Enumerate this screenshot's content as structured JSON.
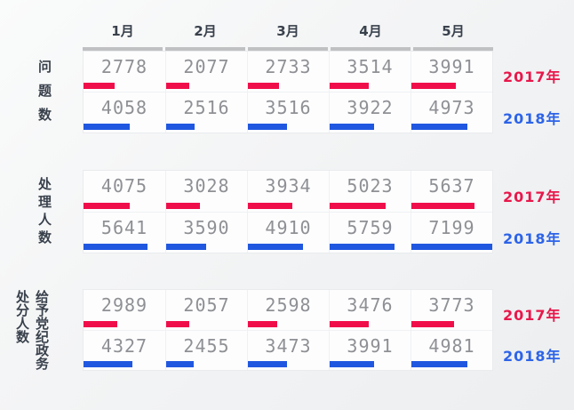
{
  "columns": [
    "1月",
    "2月",
    "3月",
    "4月",
    "5月"
  ],
  "legend": {
    "y2017": "2017年",
    "y2018": "2018年"
  },
  "colors": {
    "bar_2017": "#f00e4a",
    "bar_2018": "#2057e0",
    "legend_2017": "#e8174a",
    "legend_2018": "#2c63e8",
    "value_text": "#8e9094",
    "heading_text": "#39414c",
    "header_underline": "#bfc1c3"
  },
  "sections": [
    {
      "label": "问题数",
      "rows": [
        {
          "year": "2017年",
          "values": [
            2778,
            2077,
            2733,
            3514,
            3991
          ]
        },
        {
          "year": "2018年",
          "values": [
            4058,
            2516,
            3516,
            3922,
            4973
          ]
        }
      ]
    },
    {
      "label": "处理人数",
      "rows": [
        {
          "year": "2017年",
          "values": [
            4075,
            3028,
            3934,
            5023,
            5637
          ]
        },
        {
          "year": "2018年",
          "values": [
            5641,
            3590,
            4910,
            5759,
            7199
          ]
        }
      ]
    },
    {
      "label": "给予党纪政务处分人数",
      "rows": [
        {
          "year": "2017年",
          "values": [
            2989,
            2057,
            2598,
            3476,
            3773
          ]
        },
        {
          "year": "2018年",
          "values": [
            4327,
            2455,
            3473,
            3991,
            4981
          ]
        }
      ]
    }
  ],
  "chart_data": {
    "type": "bar",
    "categories": [
      "1月",
      "2月",
      "3月",
      "4月",
      "5月"
    ],
    "bar_scale_max": 7200,
    "legend_position": "right",
    "grid": false,
    "groups": [
      {
        "title": "问题数",
        "series": [
          {
            "name": "2017年",
            "color": "#f00e4a",
            "values": [
              2778,
              2077,
              2733,
              3514,
              3991
            ]
          },
          {
            "name": "2018年",
            "color": "#2057e0",
            "values": [
              4058,
              2516,
              3516,
              3922,
              4973
            ]
          }
        ]
      },
      {
        "title": "处理人数",
        "series": [
          {
            "name": "2017年",
            "color": "#f00e4a",
            "values": [
              4075,
              3028,
              3934,
              5023,
              5637
            ]
          },
          {
            "name": "2018年",
            "color": "#2057e0",
            "values": [
              5641,
              3590,
              4910,
              5759,
              7199
            ]
          }
        ]
      },
      {
        "title": "给予党纪政务处分人数",
        "series": [
          {
            "name": "2017年",
            "color": "#f00e4a",
            "values": [
              2989,
              2057,
              2598,
              3476,
              3773
            ]
          },
          {
            "name": "2018年",
            "color": "#2057e0",
            "values": [
              4327,
              2455,
              3473,
              3991,
              4981
            ]
          }
        ]
      }
    ]
  }
}
